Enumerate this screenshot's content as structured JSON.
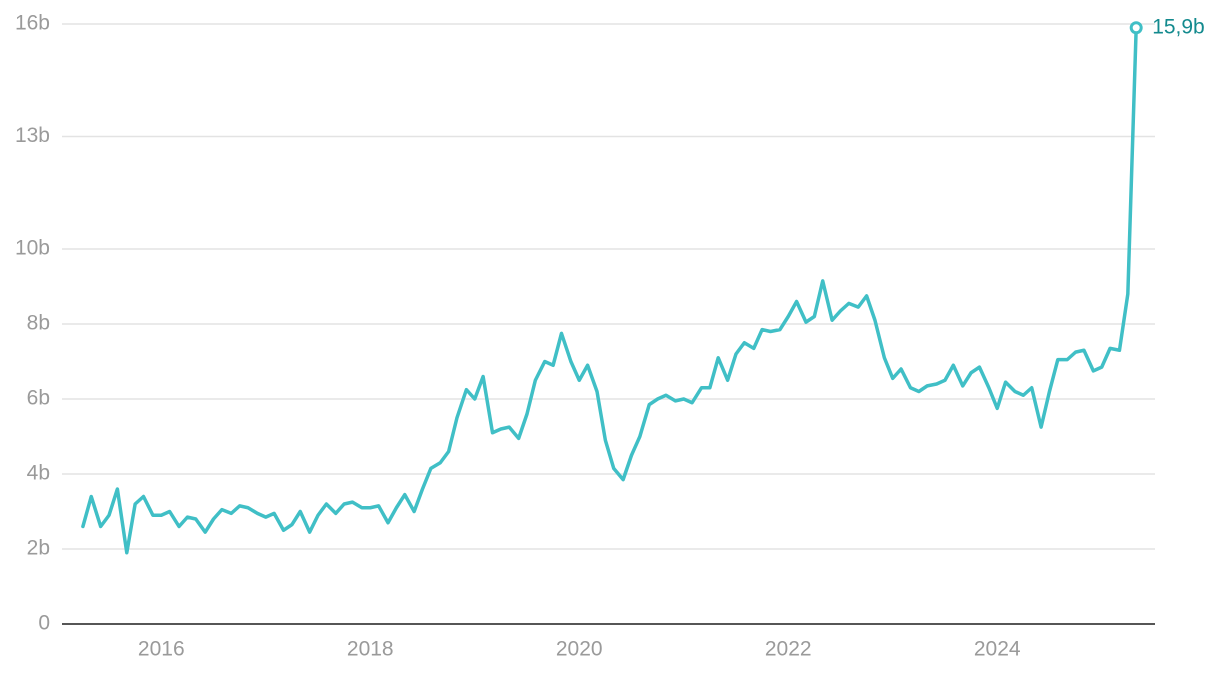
{
  "chart_data": {
    "type": "line",
    "x": [
      2015.25,
      2015.33,
      2015.42,
      2015.5,
      2015.58,
      2015.67,
      2015.75,
      2015.83,
      2015.92,
      2016.0,
      2016.08,
      2016.17,
      2016.25,
      2016.33,
      2016.42,
      2016.5,
      2016.58,
      2016.67,
      2016.75,
      2016.83,
      2016.92,
      2017.0,
      2017.08,
      2017.17,
      2017.25,
      2017.33,
      2017.42,
      2017.5,
      2017.58,
      2017.67,
      2017.75,
      2017.83,
      2017.92,
      2018.0,
      2018.08,
      2018.17,
      2018.25,
      2018.33,
      2018.42,
      2018.5,
      2018.58,
      2018.67,
      2018.75,
      2018.83,
      2018.92,
      2019.0,
      2019.08,
      2019.17,
      2019.25,
      2019.33,
      2019.42,
      2019.5,
      2019.58,
      2019.67,
      2019.75,
      2019.83,
      2019.92,
      2020.0,
      2020.08,
      2020.17,
      2020.25,
      2020.33,
      2020.42,
      2020.5,
      2020.58,
      2020.67,
      2020.75,
      2020.83,
      2020.92,
      2021.0,
      2021.08,
      2021.17,
      2021.25,
      2021.33,
      2021.42,
      2021.5,
      2021.58,
      2021.67,
      2021.75,
      2021.83,
      2021.92,
      2022.0,
      2022.08,
      2022.17,
      2022.25,
      2022.33,
      2022.42,
      2022.5,
      2022.58,
      2022.67,
      2022.75,
      2022.83,
      2022.92,
      2023.0,
      2023.08,
      2023.17,
      2023.25,
      2023.33,
      2023.42,
      2023.5,
      2023.58,
      2023.67,
      2023.75,
      2023.83,
      2023.92,
      2024.0,
      2024.08,
      2024.17,
      2024.25,
      2024.33,
      2024.42,
      2024.5,
      2024.58,
      2024.67,
      2024.75,
      2024.83,
      2024.92,
      2025.0,
      2025.08,
      2025.17,
      2025.25,
      2025.33
    ],
    "values": [
      2.6,
      3.4,
      2.6,
      2.9,
      3.6,
      1.9,
      3.2,
      3.4,
      2.9,
      2.9,
      3.0,
      2.6,
      2.85,
      2.8,
      2.45,
      2.8,
      3.05,
      2.95,
      3.15,
      3.1,
      2.95,
      2.85,
      2.95,
      2.5,
      2.65,
      3.0,
      2.45,
      2.9,
      3.2,
      2.95,
      3.2,
      3.25,
      3.1,
      3.1,
      3.15,
      2.7,
      3.1,
      3.45,
      3.0,
      3.6,
      4.15,
      4.3,
      4.6,
      5.5,
      6.25,
      6.0,
      6.6,
      5.1,
      5.2,
      5.25,
      4.95,
      5.6,
      6.5,
      7.0,
      6.9,
      7.75,
      7.0,
      6.5,
      6.9,
      6.2,
      4.9,
      4.15,
      3.85,
      4.5,
      5.0,
      5.85,
      6.0,
      6.1,
      5.95,
      6.0,
      5.9,
      6.3,
      6.3,
      7.1,
      6.5,
      7.2,
      7.5,
      7.35,
      7.85,
      7.8,
      7.85,
      8.2,
      8.6,
      8.05,
      8.2,
      9.15,
      8.1,
      8.35,
      8.55,
      8.45,
      8.75,
      8.1,
      7.1,
      6.55,
      6.8,
      6.3,
      6.2,
      6.35,
      6.4,
      6.5,
      6.9,
      6.35,
      6.7,
      6.85,
      6.3,
      5.75,
      6.45,
      6.2,
      6.1,
      6.3,
      5.25,
      6.2,
      7.05,
      7.05,
      7.25,
      7.3,
      6.75,
      6.85,
      7.35,
      7.3,
      8.8,
      15.9
    ],
    "value_labels": [
      null,
      null,
      null,
      null,
      null,
      null,
      null,
      null,
      null,
      null,
      null,
      null,
      null,
      null,
      null,
      null,
      null,
      null,
      null,
      null,
      null,
      null,
      null,
      null,
      null,
      null,
      null,
      null,
      null,
      null,
      null,
      null,
      null,
      null,
      null,
      null,
      null,
      null,
      null,
      null,
      null,
      null,
      null,
      null,
      null,
      null,
      null,
      null,
      null,
      null,
      null,
      null,
      null,
      null,
      null,
      null,
      null,
      null,
      null,
      null,
      null,
      null,
      null,
      null,
      null,
      null,
      null,
      null,
      null,
      null,
      null,
      null,
      null,
      null,
      null,
      null,
      null,
      null,
      null,
      null,
      null,
      null,
      null,
      null,
      null,
      null,
      null,
      null,
      null,
      null,
      null,
      null,
      null,
      null,
      null,
      null,
      null,
      null,
      null,
      null,
      null,
      null,
      null,
      null,
      null,
      null,
      null,
      null,
      null,
      null,
      null,
      null,
      null,
      null,
      null,
      null,
      null,
      null,
      null,
      null,
      null,
      "15,9b"
    ],
    "color": "#40bfc6",
    "xlim": [
      2015.05,
      2025.51
    ],
    "xticks": [
      2016,
      2018,
      2020,
      2022,
      2024
    ],
    "ylim": [
      0,
      16
    ],
    "yticks": [
      0,
      {
        "value": 2,
        "label": "2b"
      },
      {
        "value": 4,
        "label": "4b"
      },
      {
        "value": 6,
        "label": "6b"
      },
      {
        "value": 8,
        "label": "8b"
      },
      {
        "value": 10,
        "label": "10b"
      },
      {
        "value": 13,
        "label": "13b"
      },
      {
        "value": 16,
        "label": "16b"
      }
    ],
    "grid": true
  }
}
